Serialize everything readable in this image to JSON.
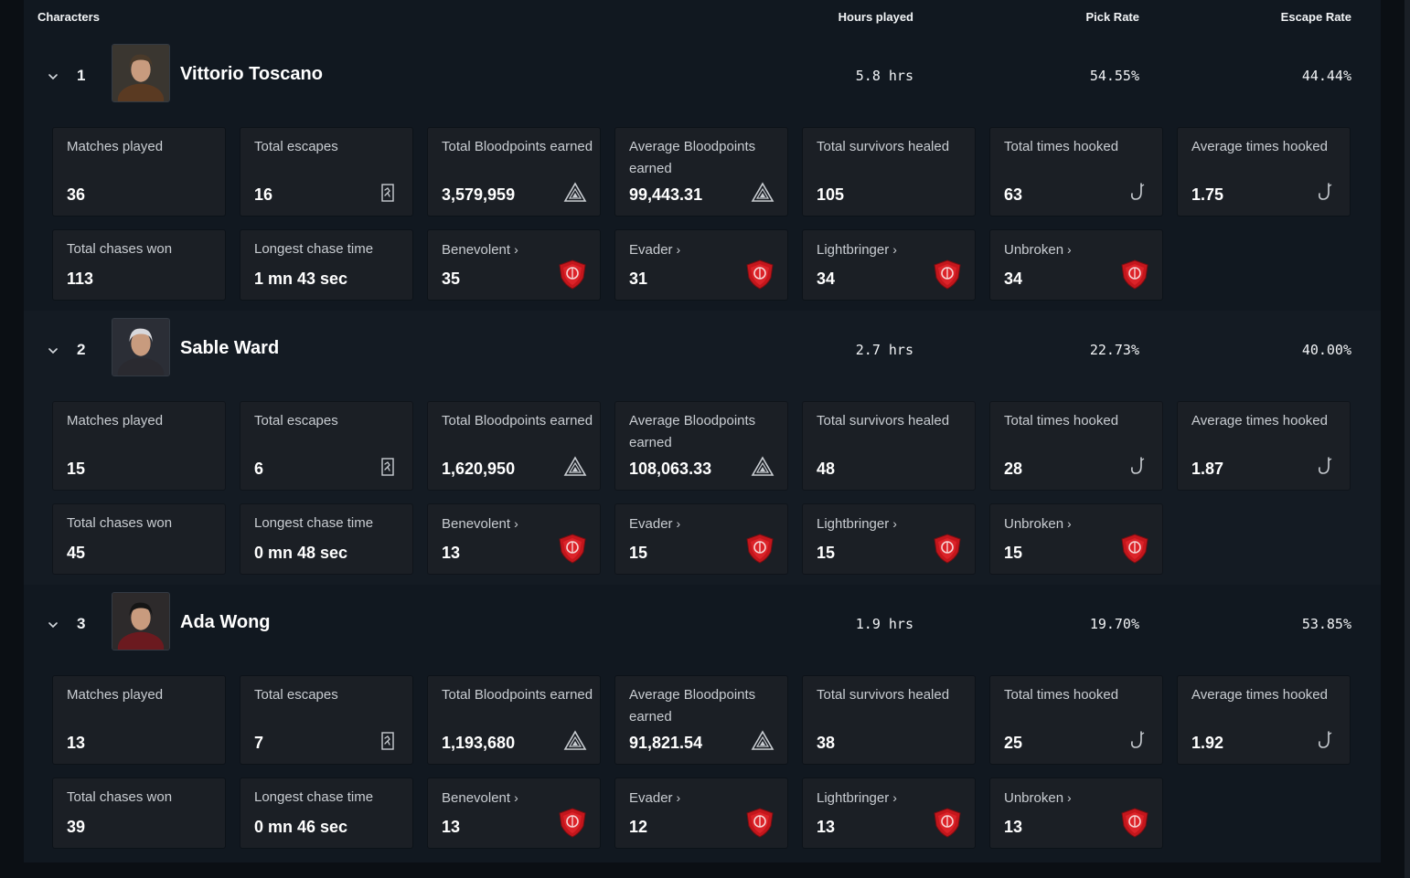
{
  "header": {
    "characters": "Characters",
    "hours": "Hours played",
    "pick": "Pick Rate",
    "escape": "Escape Rate"
  },
  "labels": {
    "matches": "Matches played",
    "escapes": "Total escapes",
    "total_bp": "Total Bloodpoints earned",
    "avg_bp": "Average Bloodpoints earned",
    "healed": "Total survivors healed",
    "hooked": "Total times hooked",
    "avg_hooked": "Average times hooked",
    "chases": "Total chases won",
    "longest": "Longest chase time",
    "benevolent": "Benevolent",
    "evader": "Evader",
    "lightbringer": "Lightbringer",
    "unbroken": "Unbroken",
    "arrow": "›"
  },
  "icons": {
    "chevron": "chevron-down-icon",
    "escape": "escape-door-icon",
    "bloodpoints": "bloodpoints-icon",
    "hook": "hook-icon",
    "emblem": "emblem-badge-icon"
  },
  "colors": {
    "card_bg": "#1b1f25",
    "panel_bg": "#111820",
    "badge_red": "#c4161c"
  },
  "characters": [
    {
      "rank": "1",
      "name": "Vittorio Toscano",
      "hours": "5.8 hrs",
      "pick": "54.55%",
      "escape": "44.44%",
      "matches": "36",
      "escapes": "16",
      "total_bp": "3,579,959",
      "avg_bp": "99,443.31",
      "healed": "105",
      "hooked": "63",
      "avg_hooked": "1.75",
      "chases": "113",
      "longest": "1 mn 43 sec",
      "benevolent": "35",
      "evader": "31",
      "lightbringer": "34",
      "unbroken": "34"
    },
    {
      "rank": "2",
      "name": "Sable Ward",
      "hours": "2.7 hrs",
      "pick": "22.73%",
      "escape": "40.00%",
      "matches": "15",
      "escapes": "6",
      "total_bp": "1,620,950",
      "avg_bp": "108,063.33",
      "healed": "48",
      "hooked": "28",
      "avg_hooked": "1.87",
      "chases": "45",
      "longest": "0 mn 48 sec",
      "benevolent": "13",
      "evader": "15",
      "lightbringer": "15",
      "unbroken": "15"
    },
    {
      "rank": "3",
      "name": "Ada Wong",
      "hours": "1.9 hrs",
      "pick": "19.70%",
      "escape": "53.85%",
      "matches": "13",
      "escapes": "7",
      "total_bp": "1,193,680",
      "avg_bp": "91,821.54",
      "healed": "38",
      "hooked": "25",
      "avg_hooked": "1.92",
      "chases": "39",
      "longest": "0 mn 46 sec",
      "benevolent": "13",
      "evader": "12",
      "lightbringer": "13",
      "unbroken": "13"
    }
  ]
}
